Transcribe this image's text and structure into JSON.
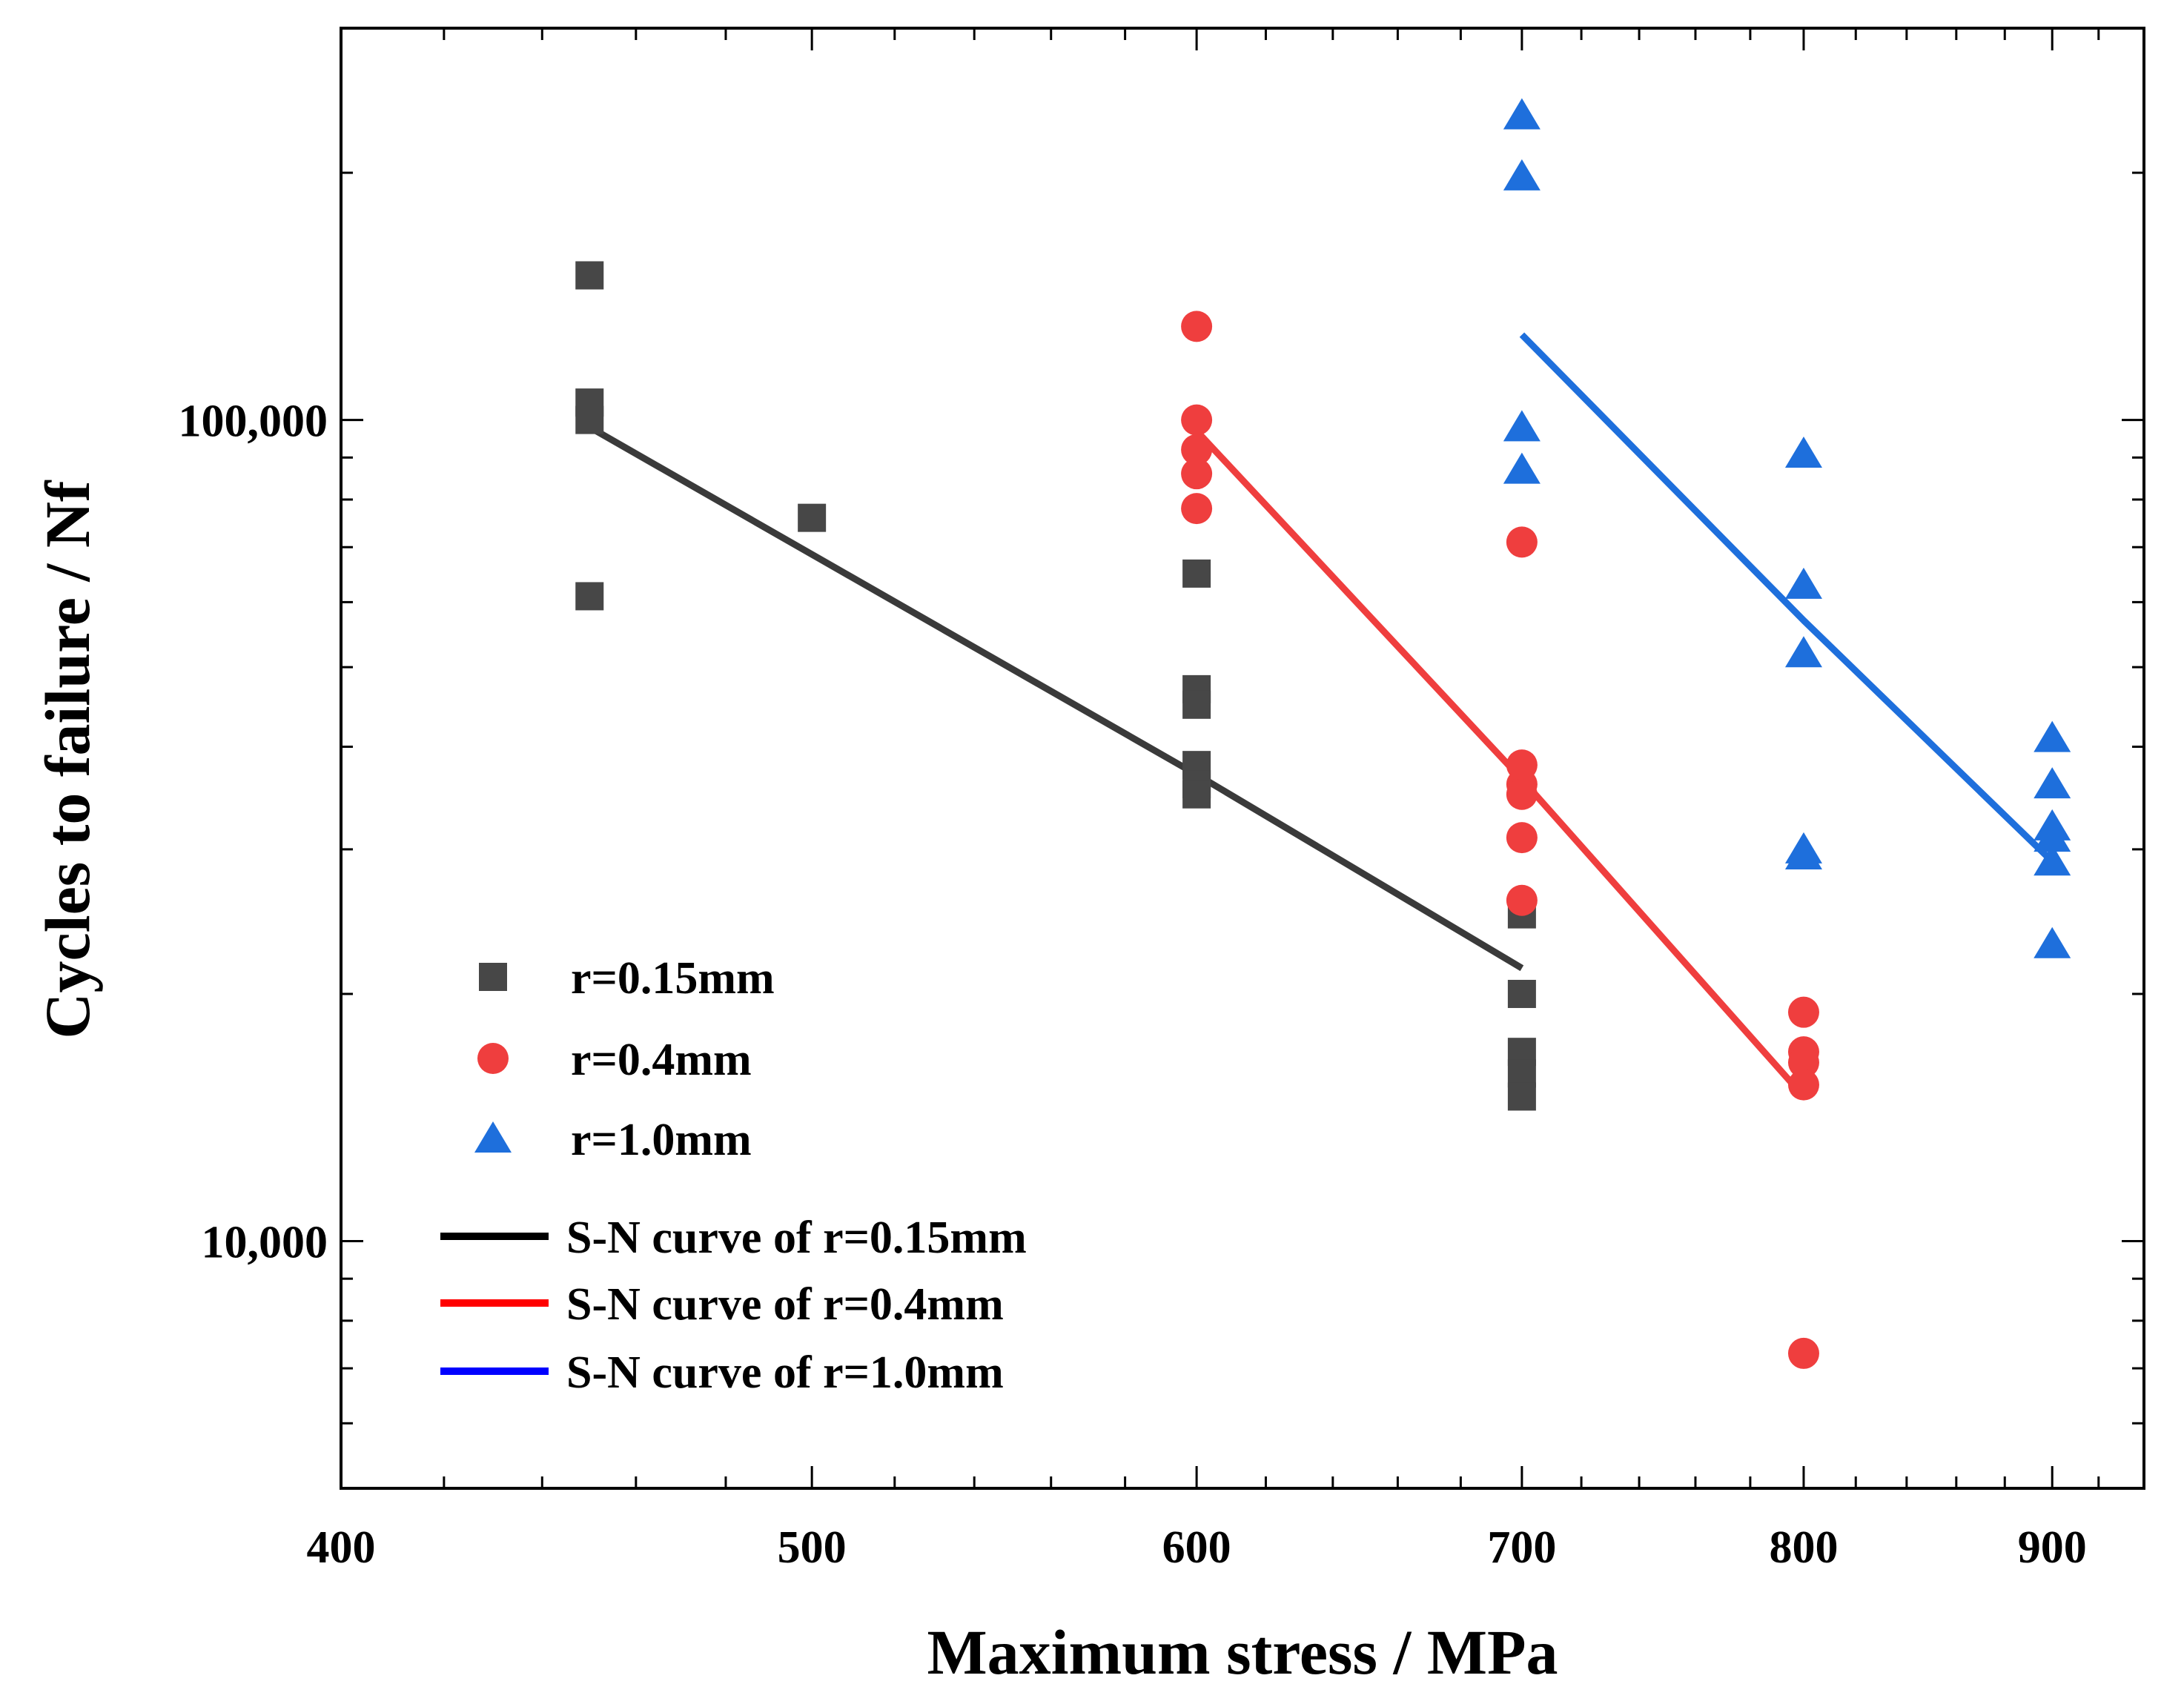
{
  "chart_data": {
    "type": "scatter",
    "title": "",
    "xlabel": "Maximum stress / MPa",
    "ylabel": "Cycles to failure / Nf",
    "xscale": "log",
    "yscale": "log",
    "xlim": [
      400,
      940
    ],
    "ylim": [
      5000,
      300000
    ],
    "xticks": [
      400,
      500,
      600,
      700,
      800,
      900
    ],
    "xtick_labels": [
      "400",
      "500",
      "600",
      "700",
      "800",
      "900"
    ],
    "yticks": [
      10000,
      100000
    ],
    "ytick_labels": [
      "10,000",
      "100,000"
    ],
    "legend_position": "bottom-left",
    "series": [
      {
        "name": "r=0.15mm",
        "kind": "points",
        "marker": "square",
        "color": "#474747",
        "points": [
          [
            450,
            150000
          ],
          [
            450,
            105000
          ],
          [
            450,
            100000
          ],
          [
            450,
            61000
          ],
          [
            500,
            76000
          ],
          [
            600,
            65000
          ],
          [
            600,
            47000
          ],
          [
            600,
            45000
          ],
          [
            600,
            38000
          ],
          [
            600,
            36000
          ],
          [
            600,
            35000
          ],
          [
            700,
            25000
          ],
          [
            700,
            20000
          ],
          [
            700,
            17000
          ],
          [
            700,
            16000
          ],
          [
            700,
            15000
          ]
        ]
      },
      {
        "name": "r=0.4mm",
        "kind": "points",
        "marker": "circle",
        "color": "#ef3e3e",
        "points": [
          [
            600,
            130000
          ],
          [
            600,
            100000
          ],
          [
            600,
            92000
          ],
          [
            600,
            86000
          ],
          [
            600,
            78000
          ],
          [
            700,
            71000
          ],
          [
            700,
            38000
          ],
          [
            700,
            36000
          ],
          [
            700,
            35000
          ],
          [
            700,
            31000
          ],
          [
            700,
            26000
          ],
          [
            800,
            19000
          ],
          [
            800,
            17000
          ],
          [
            800,
            16500
          ],
          [
            800,
            15500
          ],
          [
            800,
            7300
          ]
        ]
      },
      {
        "name": "r=1.0mm",
        "kind": "points",
        "marker": "triangle",
        "color": "#1e6fdc",
        "points": [
          [
            700,
            235000
          ],
          [
            700,
            198000
          ],
          [
            700,
            98000
          ],
          [
            700,
            87000
          ],
          [
            800,
            91000
          ],
          [
            800,
            63000
          ],
          [
            800,
            52000
          ],
          [
            800,
            30000
          ],
          [
            800,
            29500
          ],
          [
            900,
            41000
          ],
          [
            900,
            36000
          ],
          [
            900,
            32000
          ],
          [
            900,
            31000
          ],
          [
            900,
            29000
          ],
          [
            900,
            23000
          ]
        ]
      },
      {
        "name": "S-N curve of r=0.15mm",
        "kind": "line",
        "color": "#3a3a3a",
        "legend_color": "#000000",
        "points": [
          [
            450,
            98000
          ],
          [
            600,
            37000
          ],
          [
            700,
            21500
          ]
        ]
      },
      {
        "name": "S-N curve of r=0.4mm",
        "kind": "line",
        "color": "#ef3e3e",
        "legend_color": "#ff0000",
        "points": [
          [
            600,
            97000
          ],
          [
            700,
            36500
          ],
          [
            800,
            15000
          ]
        ]
      },
      {
        "name": "S-N curve of r=1.0mm",
        "kind": "line",
        "color": "#1e6fdc",
        "legend_color": "#0000ff",
        "points": [
          [
            700,
            127000
          ],
          [
            800,
            57000
          ],
          [
            900,
            29000
          ]
        ]
      }
    ]
  }
}
